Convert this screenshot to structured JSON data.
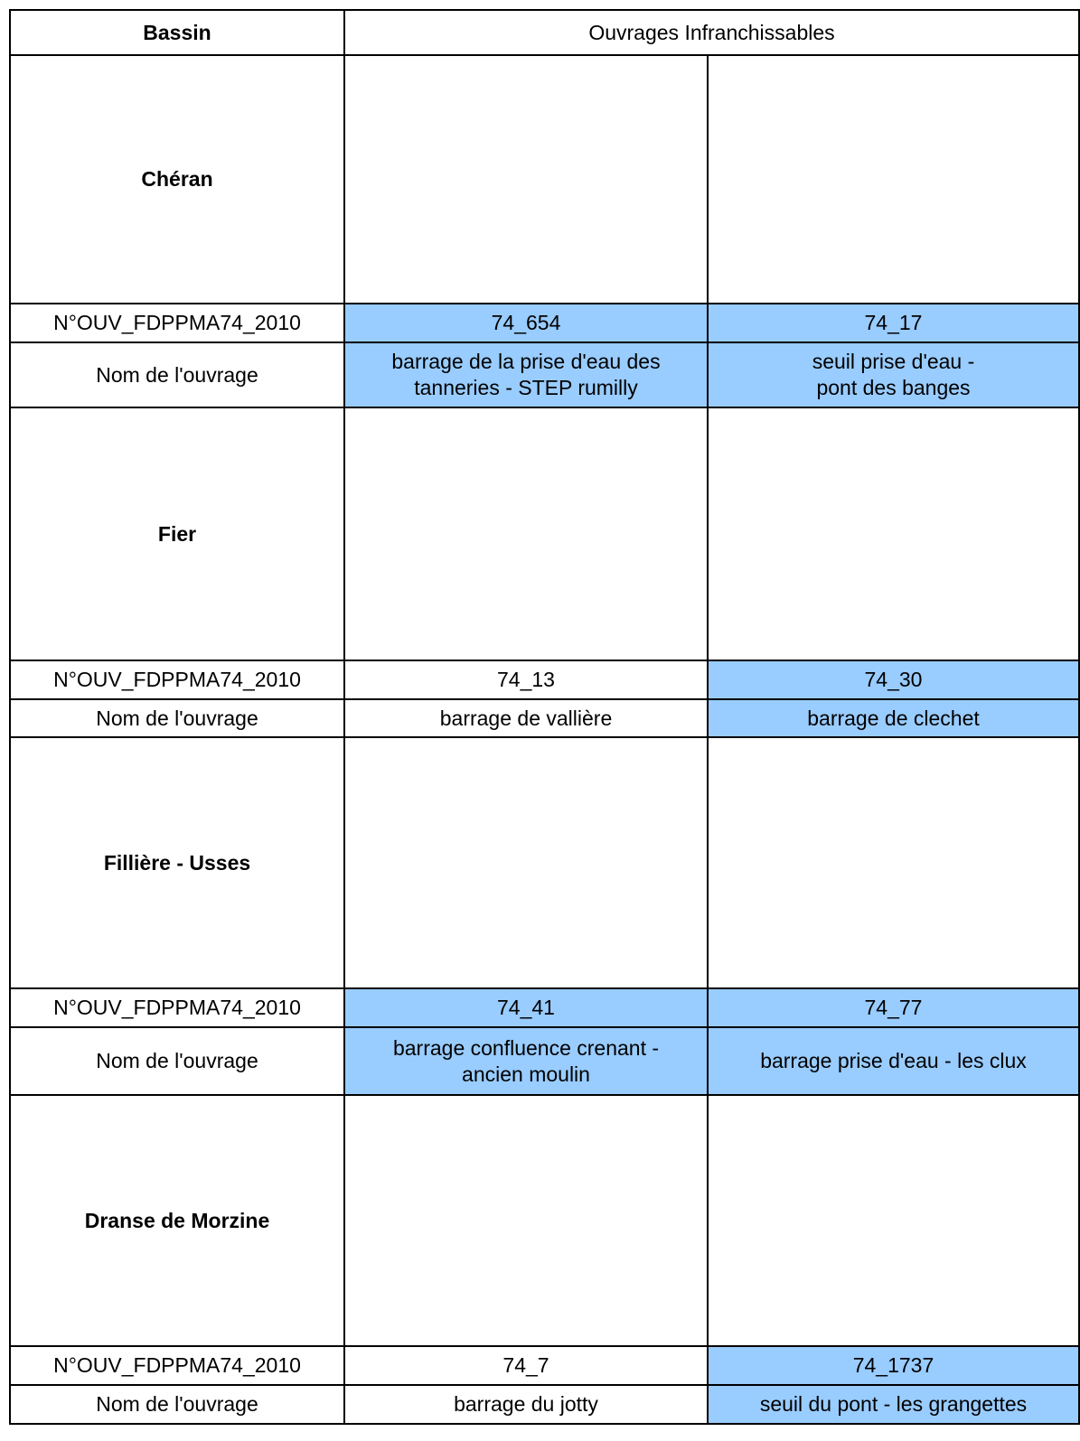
{
  "header": {
    "bassin": "Bassin",
    "ouvrages": "Ouvrages Infranchissables"
  },
  "row_labels": {
    "numero": "N°OUV_FDPPMA74_2010",
    "nom": "Nom de l'ouvrage"
  },
  "sections": [
    {
      "bassin": "Chéran",
      "ouvrages": [
        {
          "numero": "74_654",
          "nom": "barrage de la prise d'eau des\ntanneries - STEP rumilly",
          "highlighted": true
        },
        {
          "numero": "74_17",
          "nom": "seuil prise d'eau -\npont des banges",
          "highlighted": true
        }
      ]
    },
    {
      "bassin": "Fier",
      "ouvrages": [
        {
          "numero": "74_13",
          "nom": "barrage de vallière",
          "highlighted": false
        },
        {
          "numero": "74_30",
          "nom": "barrage de clechet",
          "highlighted": true
        }
      ]
    },
    {
      "bassin": "Fillière - Usses",
      "ouvrages": [
        {
          "numero": "74_41",
          "nom": "barrage confluence crenant -\nancien moulin",
          "highlighted": true
        },
        {
          "numero": "74_77",
          "nom": "barrage prise d'eau - les clux",
          "highlighted": true
        }
      ]
    },
    {
      "bassin": "Dranse de Morzine",
      "ouvrages": [
        {
          "numero": "74_7",
          "nom": "barrage du jotty",
          "highlighted": false
        },
        {
          "numero": "74_1737",
          "nom": "seuil du pont - les grangettes",
          "highlighted": true
        }
      ]
    }
  ]
}
